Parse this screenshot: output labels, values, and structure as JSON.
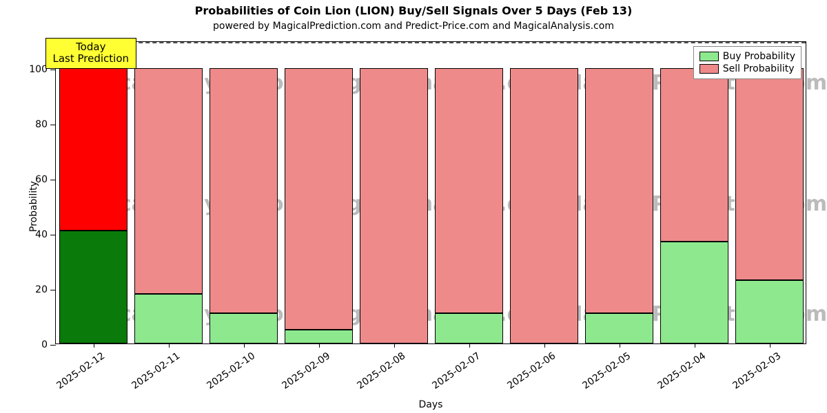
{
  "chart": {
    "type": "stacked_bar",
    "title": "Probabilities of Coin Lion (LION) Buy/Sell Signals Over 5 Days (Feb 13)",
    "title_fontsize": 16,
    "subtitle": "powered by MagicalPrediction.com and Predict-Price.com and MagicalAnalysis.com",
    "subtitle_fontsize": 14,
    "xlabel": "Days",
    "ylabel": "Probability",
    "label_fontsize": 14,
    "tick_fontsize": 14,
    "background_color": "#ffffff",
    "border_color": "#000000",
    "ylim_min": 0,
    "ylim_max": 110,
    "yticks": [
      0,
      20,
      40,
      60,
      80,
      100
    ],
    "ref_line_value": 110,
    "ref_line_color": "#555555",
    "bar_gap_ratio": 0.1,
    "categories": [
      "2025-02-12",
      "2025-02-11",
      "2025-02-10",
      "2025-02-09",
      "2025-02-08",
      "2025-02-07",
      "2025-02-06",
      "2025-02-05",
      "2025-02-04",
      "2025-02-03"
    ],
    "buy_values": [
      41,
      18,
      11,
      5,
      0,
      11,
      0,
      11,
      37,
      23
    ],
    "sell_values": [
      59,
      82,
      89,
      95,
      100,
      89,
      100,
      89,
      63,
      77
    ],
    "colors": {
      "buy_first": "#0a7a0a",
      "sell_first": "#ff0000",
      "buy_rest": "#8ee98e",
      "sell_rest": "#ef8a8a"
    },
    "annotation": {
      "line1": "Today",
      "line2": "Last Prediction",
      "bg_color": "#ffff33",
      "fontsize": 15,
      "x_category_index": 0,
      "y_value": 106
    },
    "legend": {
      "position": "top-right",
      "items": [
        {
          "label": "Buy Probability",
          "swatch": "#8ee98e"
        },
        {
          "label": "Sell Probability",
          "swatch": "#ef8a8a"
        }
      ]
    },
    "watermark": {
      "text": "MagicalAnalysis.com   MagicalAnalysis.com   MagicalPrediction.com",
      "color": "#bbbbbb",
      "fontsize": 30,
      "rows_y_value": [
        92,
        48,
        8
      ]
    }
  }
}
